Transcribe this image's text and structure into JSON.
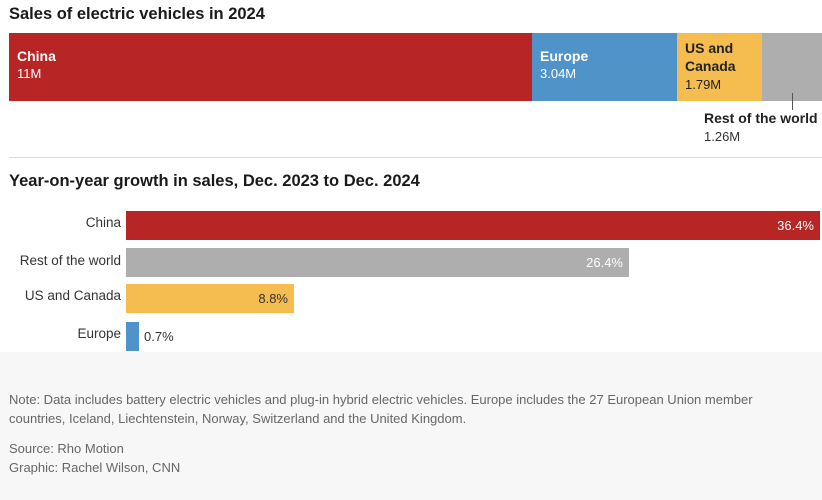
{
  "chart_data": [
    {
      "type": "stacked-bar",
      "title": "Sales of electric vehicles in 2024",
      "categories": [
        "China",
        "Europe",
        "US and Canada",
        "Rest of the world"
      ],
      "values": [
        11,
        3.04,
        1.79,
        1.26
      ],
      "value_labels": [
        "11M",
        "3.04M",
        "1.79M",
        "1.26M"
      ],
      "unit": "million vehicles",
      "colors": [
        "#b72525",
        "#4f93c8",
        "#f5bd4f",
        "#aeaeae"
      ]
    },
    {
      "type": "bar",
      "orientation": "horizontal",
      "title": "Year-on-year growth in sales, Dec. 2023 to Dec. 2024",
      "categories": [
        "China",
        "Rest of the world",
        "US and Canada",
        "Europe"
      ],
      "values": [
        36.4,
        26.4,
        8.8,
        0.7
      ],
      "value_labels": [
        "36.4%",
        "26.4%",
        "8.8%",
        "0.7%"
      ],
      "unit": "%",
      "xlim": [
        0,
        36.4
      ],
      "colors": [
        "#b72525",
        "#aeaeae",
        "#f5bd4f",
        "#4f93c8"
      ]
    }
  ],
  "sales": {
    "title": "Sales of electric vehicles in 2024",
    "segments": [
      {
        "label": "China",
        "value": "11M"
      },
      {
        "label": "Europe",
        "value": "3.04M"
      },
      {
        "label": "US and Canada",
        "label_line1": "US and",
        "label_line2": "Canada",
        "value": "1.79M"
      },
      {
        "label": "Rest of the world",
        "value": "1.26M"
      }
    ]
  },
  "growth": {
    "title": "Year-on-year growth in sales, Dec. 2023 to Dec. 2024",
    "rows": [
      {
        "label": "China",
        "value": "36.4%"
      },
      {
        "label": "Rest of the world",
        "value": "26.4%"
      },
      {
        "label": "US and Canada",
        "value": "8.8%"
      },
      {
        "label": "Europe",
        "value": "0.7%"
      }
    ]
  },
  "footer": {
    "note_line1": "Note: Data includes battery electric vehicles and plug-in hybrid electric vehicles. Europe includes the 27 European Union member",
    "note_line2": "countries, Iceland, Liechtenstein, Norway, Switzerland and the United Kingdom.",
    "source": "Source: Rho Motion",
    "graphic": "Graphic: Rachel Wilson, CNN"
  }
}
